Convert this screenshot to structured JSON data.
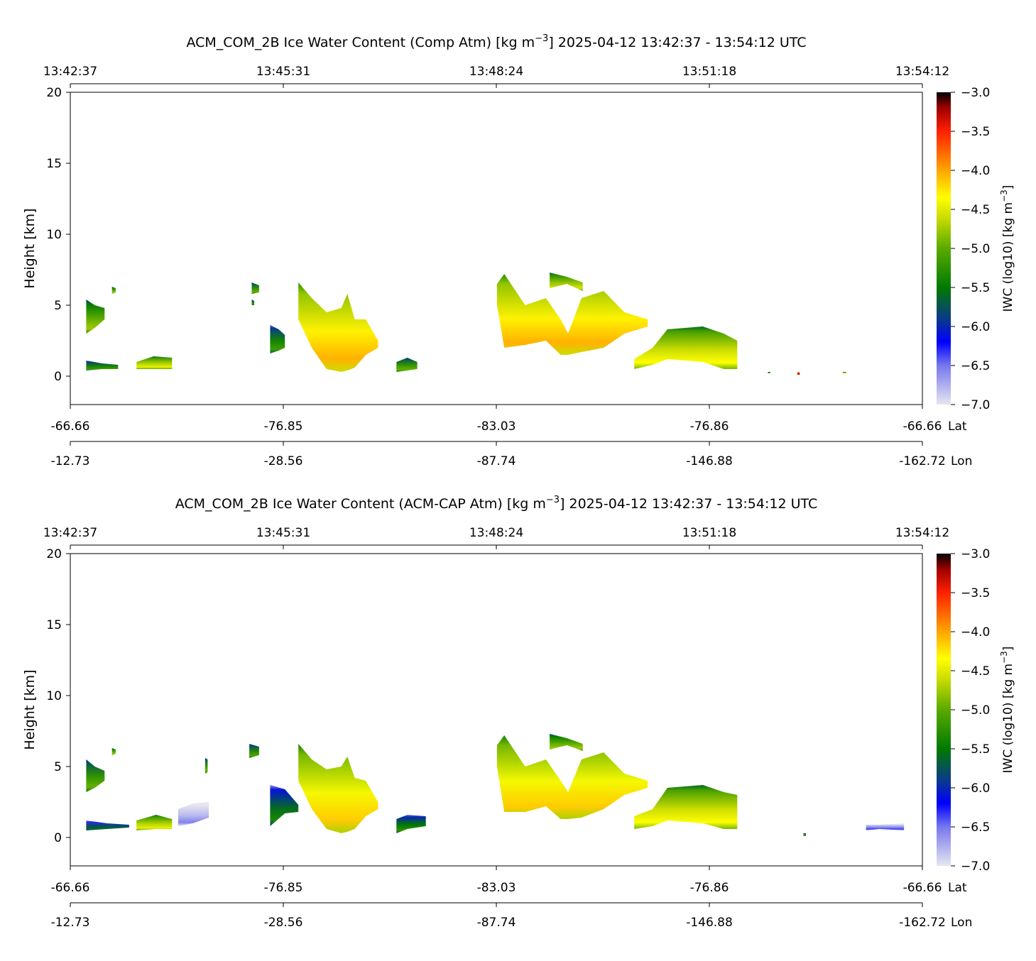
{
  "chart_data": [
    {
      "type": "heatmap",
      "title_prefix": "ACM_COM_2B Ice Water Content (Comp Atm) [kg m",
      "title_sup": "−3",
      "title_suffix": "]    2025-04-12    13:42:37 - 13:54:12 UTC",
      "time_ticks": [
        "13:42:37",
        "13:45:31",
        "13:48:24",
        "13:51:18",
        "13:54:12"
      ],
      "lat_ticks": [
        "-66.66",
        "-76.85",
        "-83.03",
        "-76.86",
        "-66.66"
      ],
      "lat_label": "Lat",
      "lon_ticks": [
        "-12.73",
        "-28.56",
        "-87.74",
        "-146.88",
        "-162.72"
      ],
      "lon_label": "Lon",
      "xlim_seconds": [
        0,
        695
      ],
      "ylabel": "Height [km]",
      "ylim": [
        -2,
        20
      ],
      "yticks": [
        "0",
        "5",
        "10",
        "15",
        "20"
      ],
      "colorbar": {
        "label": "IWC (log10) [kg m",
        "label_sup": "−3",
        "label_end": "]",
        "range": [
          -7.0,
          -3.0
        ],
        "ticks": [
          "−3.0",
          "−3.5",
          "−4.0",
          "−4.5",
          "−5.0",
          "−5.5",
          "−6.0",
          "−6.5",
          "−7.0"
        ]
      },
      "clouds": [
        {
          "v": -5.0,
          "pts": [
            [
              13,
              5.4,
              3.0
            ],
            [
              20,
              5.0,
              3.4
            ],
            [
              28,
              4.8,
              4.0
            ]
          ]
        },
        {
          "v": -5.4,
          "pts": [
            [
              13,
              1.1,
              0.4
            ],
            [
              26,
              0.9,
              0.5
            ],
            [
              39,
              0.8,
              0.5
            ]
          ]
        },
        {
          "v": -4.7,
          "pts": [
            [
              54,
              1.0,
              0.5
            ],
            [
              68,
              1.4,
              0.5
            ],
            [
              83,
              1.3,
              0.5
            ]
          ]
        },
        {
          "v": -5.0,
          "pts": [
            [
              34,
              6.3,
              5.8
            ],
            [
              37,
              6.2,
              5.9
            ]
          ]
        },
        {
          "v": -5.4,
          "pts": [
            [
              148,
              5.4,
              5.0
            ],
            [
              150,
              5.3,
              5.0
            ]
          ]
        },
        {
          "v": -5.2,
          "pts": [
            [
              148,
              6.6,
              5.8
            ],
            [
              154,
              6.4,
              5.9
            ]
          ]
        },
        {
          "v": -5.4,
          "pts": [
            [
              163,
              3.6,
              1.6
            ],
            [
              170,
              3.3,
              1.8
            ],
            [
              175,
              2.9,
              2.0
            ]
          ]
        },
        {
          "v": -4.3,
          "pts": [
            [
              186,
              6.6,
              4.0
            ],
            [
              197,
              5.5,
              2.0
            ],
            [
              209,
              4.5,
              0.5
            ],
            [
              221,
              4.8,
              0.3
            ],
            [
              226,
              5.8,
              0.4
            ],
            [
              232,
              4.0,
              0.6
            ],
            [
              241,
              4.0,
              1.5
            ],
            [
              251,
              2.5,
              2.0
            ]
          ]
        },
        {
          "v": -5.2,
          "pts": [
            [
              266,
              1.0,
              0.3
            ],
            [
              275,
              1.3,
              0.4
            ],
            [
              283,
              1.0,
              0.5
            ]
          ]
        },
        {
          "v": -4.3,
          "pts": [
            [
              348,
              6.5,
              5.0
            ],
            [
              354,
              7.2,
              2.0
            ],
            [
              371,
              5.0,
              2.2
            ],
            [
              388,
              5.5,
              2.5
            ],
            [
              400,
              4.0,
              1.5
            ],
            [
              406,
              3.0,
              1.5
            ],
            [
              417,
              5.5,
              1.7
            ],
            [
              435,
              6.0,
              2.0
            ],
            [
              452,
              4.5,
              3.0
            ],
            [
              471,
              4.0,
              3.5
            ]
          ]
        },
        {
          "v": -4.8,
          "pts": [
            [
              391,
              7.3,
              6.2
            ],
            [
              405,
              7.0,
              6.5
            ],
            [
              418,
              6.6,
              6.0
            ]
          ]
        },
        {
          "v": -4.6,
          "pts": [
            [
              460,
              1.2,
              0.5
            ],
            [
              475,
              2.0,
              0.8
            ],
            [
              487,
              3.3,
              1.2
            ],
            [
              516,
              3.5,
              1.0
            ],
            [
              533,
              3.0,
              0.5
            ],
            [
              544,
              2.5,
              0.5
            ]
          ]
        },
        {
          "v": -3.4,
          "pts": [
            [
              593,
              0.3,
              0.1
            ],
            [
              595,
              0.3,
              0.1
            ]
          ]
        },
        {
          "v": -5.2,
          "pts": [
            [
              569,
              0.3,
              0.2
            ],
            [
              571,
              0.3,
              0.2
            ]
          ]
        },
        {
          "v": -4.8,
          "pts": [
            [
              630,
              0.3,
              0.2
            ],
            [
              633,
              0.3,
              0.2
            ]
          ]
        }
      ]
    },
    {
      "type": "heatmap",
      "title_prefix": "ACM_COM_2B Ice Water Content (ACM-CAP Atm) [kg m",
      "title_sup": "−3",
      "title_suffix": "]    2025-04-12    13:42:37 - 13:54:12 UTC",
      "time_ticks": [
        "13:42:37",
        "13:45:31",
        "13:48:24",
        "13:51:18",
        "13:54:12"
      ],
      "lat_ticks": [
        "-66.66",
        "-76.85",
        "-83.03",
        "-76.86",
        "-66.66"
      ],
      "lat_label": "Lat",
      "lon_ticks": [
        "-12.73",
        "-28.56",
        "-87.74",
        "-146.88",
        "-162.72"
      ],
      "lon_label": "Lon",
      "xlim_seconds": [
        0,
        695
      ],
      "ylabel": "Height [km]",
      "ylim": [
        -2,
        20
      ],
      "yticks": [
        "0",
        "5",
        "10",
        "15",
        "20"
      ],
      "colorbar": {
        "label": "IWC (log10) [kg m",
        "label_sup": "−3",
        "label_end": "]",
        "range": [
          -7.0,
          -3.0
        ],
        "ticks": [
          "−3.0",
          "−3.5",
          "−4.0",
          "−4.5",
          "−5.0",
          "−5.5",
          "−6.0",
          "−6.5",
          "−7.0"
        ]
      },
      "clouds": [
        {
          "v": -5.2,
          "pts": [
            [
              13,
              5.5,
              3.2
            ],
            [
              20,
              5.0,
              3.5
            ],
            [
              28,
              4.7,
              4.0
            ]
          ]
        },
        {
          "v": -5.8,
          "pts": [
            [
              13,
              1.2,
              0.5
            ],
            [
              30,
              1.0,
              0.6
            ],
            [
              48,
              0.9,
              0.7
            ]
          ]
        },
        {
          "v": -4.7,
          "pts": [
            [
              54,
              1.2,
              0.5
            ],
            [
              70,
              1.6,
              0.6
            ],
            [
              83,
              1.3,
              0.6
            ]
          ]
        },
        {
          "v": -6.8,
          "pts": [
            [
              88,
              2.0,
              0.8
            ],
            [
              100,
              2.4,
              1.0
            ],
            [
              113,
              2.5,
              1.4
            ]
          ]
        },
        {
          "v": -5.0,
          "pts": [
            [
              34,
              6.3,
              5.8
            ],
            [
              37,
              6.2,
              5.9
            ]
          ]
        },
        {
          "v": -5.2,
          "pts": [
            [
              110,
              5.6,
              4.5
            ],
            [
              112,
              5.5,
              4.6
            ]
          ]
        },
        {
          "v": -5.3,
          "pts": [
            [
              146,
              6.6,
              5.6
            ],
            [
              154,
              6.4,
              5.8
            ]
          ]
        },
        {
          "v": -5.6,
          "pts": [
            [
              163,
              3.7,
              0.8
            ],
            [
              175,
              3.4,
              1.7
            ],
            [
              186,
              2.3,
              1.8
            ]
          ]
        },
        {
          "v": -4.4,
          "pts": [
            [
              186,
              6.6,
              4.0
            ],
            [
              197,
              5.5,
              2.0
            ],
            [
              209,
              4.8,
              0.6
            ],
            [
              221,
              5.0,
              0.3
            ],
            [
              226,
              5.7,
              0.4
            ],
            [
              232,
              4.2,
              0.6
            ],
            [
              241,
              4.0,
              1.5
            ],
            [
              251,
              2.5,
              2.0
            ]
          ]
        },
        {
          "v": -5.5,
          "pts": [
            [
              266,
              1.3,
              0.3
            ],
            [
              275,
              1.6,
              0.6
            ],
            [
              290,
              1.5,
              0.8
            ]
          ]
        },
        {
          "v": -4.4,
          "pts": [
            [
              348,
              6.5,
              5.0
            ],
            [
              354,
              7.2,
              1.8
            ],
            [
              371,
              5.0,
              1.8
            ],
            [
              388,
              5.5,
              2.2
            ],
            [
              400,
              4.0,
              1.3
            ],
            [
              406,
              3.2,
              1.3
            ],
            [
              417,
              5.5,
              1.4
            ],
            [
              435,
              6.0,
              2.0
            ],
            [
              452,
              4.5,
              3.0
            ],
            [
              471,
              4.0,
              3.5
            ]
          ]
        },
        {
          "v": -5.0,
          "pts": [
            [
              391,
              7.3,
              6.2
            ],
            [
              405,
              7.0,
              6.5
            ],
            [
              418,
              6.6,
              6.1
            ]
          ]
        },
        {
          "v": -4.6,
          "pts": [
            [
              460,
              1.5,
              0.6
            ],
            [
              475,
              2.0,
              0.8
            ],
            [
              487,
              3.5,
              1.2
            ],
            [
              516,
              3.7,
              1.0
            ],
            [
              533,
              3.2,
              0.6
            ],
            [
              544,
              3.0,
              0.6
            ]
          ]
        },
        {
          "v": -6.6,
          "pts": [
            [
              649,
              0.9,
              0.5
            ],
            [
              660,
              0.9,
              0.6
            ],
            [
              680,
              1.0,
              0.5
            ]
          ]
        },
        {
          "v": -5.3,
          "pts": [
            [
              598,
              0.3,
              0.1
            ],
            [
              600,
              0.3,
              0.1
            ]
          ]
        }
      ]
    }
  ]
}
